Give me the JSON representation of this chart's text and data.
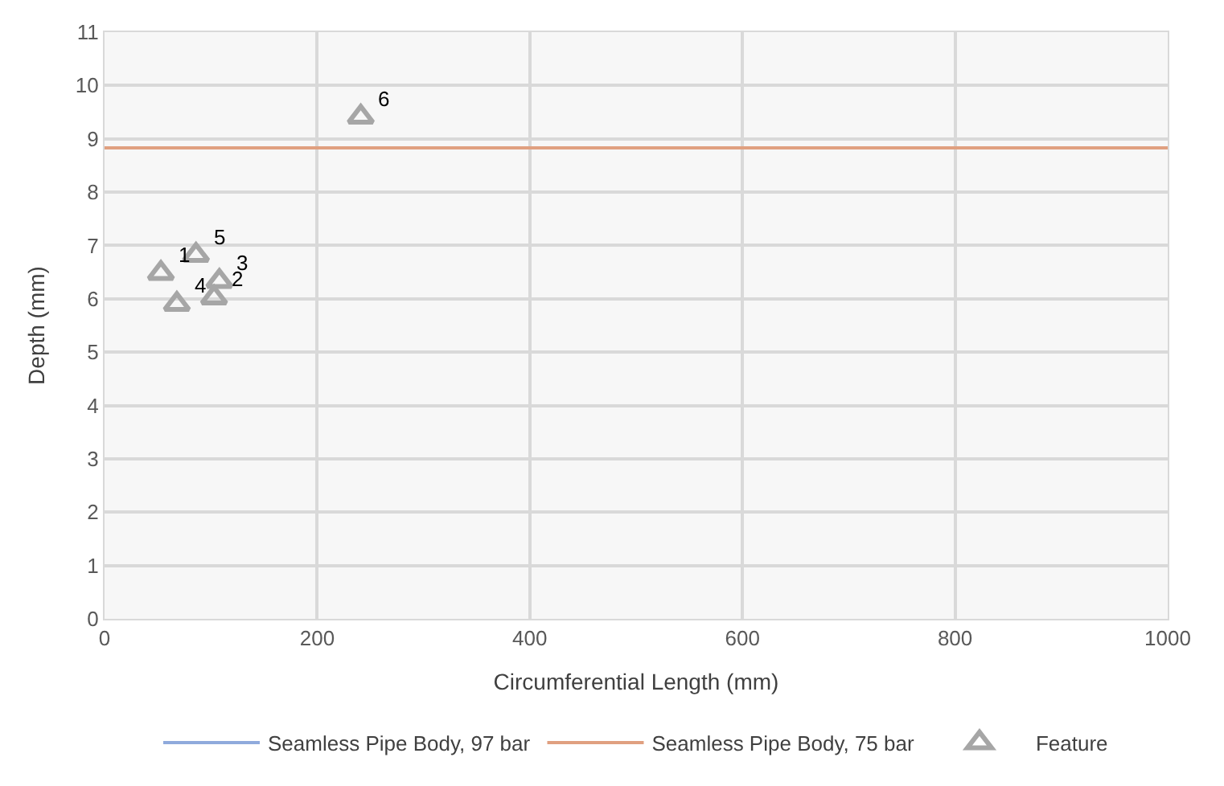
{
  "chart_data": {
    "type": "scatter",
    "xlabel": "Circumferential Length (mm)",
    "ylabel": "Depth (mm)",
    "xlim": [
      0,
      1000
    ],
    "xticks": [
      0,
      200,
      400,
      600,
      800,
      1000
    ],
    "ylim": [
      0,
      11
    ],
    "yticks": [
      0,
      1,
      2,
      3,
      4,
      5,
      6,
      7,
      8,
      9,
      10,
      11
    ],
    "grid": true,
    "legend": "bottom",
    "x": [
      0,
      1000
    ],
    "series": [
      {
        "name": "Seamless Pipe Body, 97 bar",
        "type": "line",
        "color": "#8faadc",
        "values": [
          null,
          null
        ]
      },
      {
        "name": "Seamless Pipe Body, 75 bar",
        "type": "line",
        "color": "#e0a080",
        "values": [
          8.83,
          8.83
        ]
      },
      {
        "name": "Feature",
        "color": "#a6a6a6",
        "marker": "triangle",
        "x": [
          53,
          103,
          108,
          68,
          86,
          241
        ],
        "values": [
          6.48,
          6.02,
          6.33,
          5.9,
          6.82,
          9.41
        ]
      }
    ],
    "annotations": [
      {
        "text": "1",
        "x": 53,
        "y": 6.48
      },
      {
        "text": "2",
        "x": 103,
        "y": 6.02
      },
      {
        "text": "3",
        "x": 108,
        "y": 6.33
      },
      {
        "text": "4",
        "x": 68,
        "y": 5.9
      },
      {
        "text": "5",
        "x": 86,
        "y": 6.82
      },
      {
        "text": "6",
        "x": 241,
        "y": 9.41
      }
    ]
  }
}
